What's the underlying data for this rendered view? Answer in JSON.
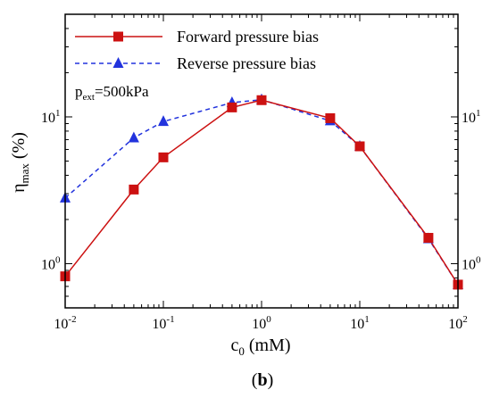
{
  "chart_data": {
    "type": "line",
    "x_scale": "log",
    "y_scale": "log",
    "xlim": [
      0.01,
      100
    ],
    "ylim": [
      0.5,
      50
    ],
    "grid": false,
    "legend_position": "top-left",
    "xlabel": {
      "main": "c",
      "sub": "0",
      "rest": " (mM)"
    },
    "ylabel": {
      "main": "η",
      "sub": "max",
      "rest": " (%)"
    },
    "annotation": {
      "main": "p",
      "sub": "ext",
      "rest": "=500kPa"
    },
    "panel_label": {
      "open": "(",
      "letter": "b",
      "close": ")"
    },
    "x_ticks": [
      {
        "value": 0.01,
        "base": "10",
        "exp": "-2"
      },
      {
        "value": 0.1,
        "base": "10",
        "exp": "-1"
      },
      {
        "value": 1,
        "base": "10",
        "exp": "0"
      },
      {
        "value": 10,
        "base": "10",
        "exp": "1"
      },
      {
        "value": 100,
        "base": "10",
        "exp": "2"
      }
    ],
    "y_ticks": [
      {
        "value": 1,
        "base": "10",
        "exp": "0"
      },
      {
        "value": 10,
        "base": "10",
        "exp": "1"
      }
    ],
    "x": [
      0.01,
      0.05,
      0.1,
      0.5,
      1,
      5,
      10,
      50,
      100
    ],
    "series": [
      {
        "name": "Forward pressure bias",
        "color": "#cc1111",
        "marker": "square",
        "line_style": "solid",
        "values": [
          0.82,
          3.2,
          5.3,
          11.6,
          13.0,
          9.8,
          6.3,
          1.5,
          0.72
        ]
      },
      {
        "name": "Reverse pressure bias",
        "color": "#2233dd",
        "marker": "triangle",
        "line_style": "dashed",
        "values": [
          2.8,
          7.2,
          9.3,
          12.5,
          13.1,
          9.4,
          6.3,
          1.48,
          0.72
        ]
      }
    ]
  }
}
